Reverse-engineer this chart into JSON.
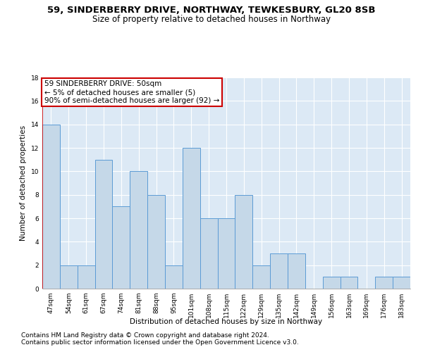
{
  "title": "59, SINDERBERRY DRIVE, NORTHWAY, TEWKESBURY, GL20 8SB",
  "subtitle": "Size of property relative to detached houses in Northway",
  "xlabel": "Distribution of detached houses by size in Northway",
  "ylabel": "Number of detached properties",
  "categories": [
    "47sqm",
    "54sqm",
    "61sqm",
    "67sqm",
    "74sqm",
    "81sqm",
    "88sqm",
    "95sqm",
    "101sqm",
    "108sqm",
    "115sqm",
    "122sqm",
    "129sqm",
    "135sqm",
    "142sqm",
    "149sqm",
    "156sqm",
    "163sqm",
    "169sqm",
    "176sqm",
    "183sqm"
  ],
  "values": [
    14,
    2,
    2,
    11,
    7,
    10,
    8,
    2,
    12,
    6,
    6,
    8,
    2,
    3,
    3,
    0,
    1,
    1,
    0,
    1,
    1
  ],
  "bar_color": "#c5d8e8",
  "bar_edge_color": "#5b9bd5",
  "annotation_line1": "59 SINDERBERRY DRIVE: 50sqm",
  "annotation_line2": "← 5% of detached houses are smaller (5)",
  "annotation_line3": "90% of semi-detached houses are larger (92) →",
  "annotation_box_color": "#ffffff",
  "annotation_box_edge_color": "#cc0000",
  "footer1": "Contains HM Land Registry data © Crown copyright and database right 2024.",
  "footer2": "Contains public sector information licensed under the Open Government Licence v3.0.",
  "fig_bg_color": "#ffffff",
  "plot_bg_color": "#dce9f5",
  "grid_color": "#ffffff",
  "title_fontsize": 9.5,
  "subtitle_fontsize": 8.5,
  "axis_label_fontsize": 7.5,
  "tick_fontsize": 6.5,
  "annotation_fontsize": 7.5,
  "footer_fontsize": 6.5
}
